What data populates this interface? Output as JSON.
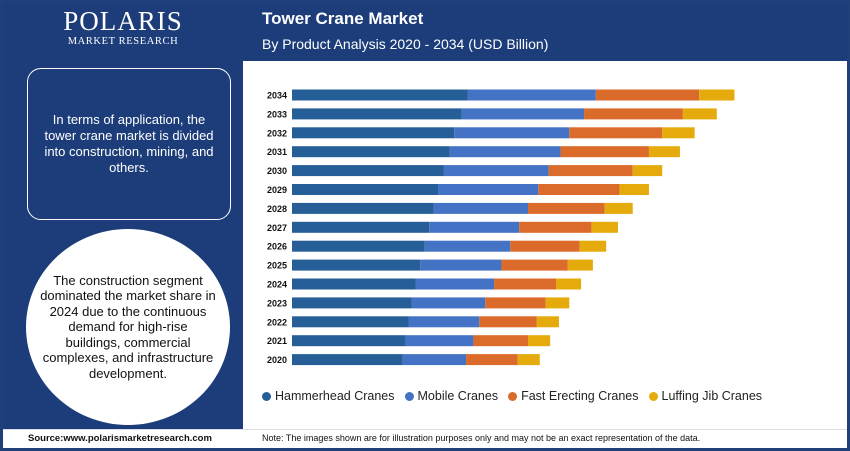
{
  "brand": {
    "name": "POLARIS",
    "tagline": "MARKET RESEARCH"
  },
  "header": {
    "title": "Tower Crane Market",
    "subtitle": "By Product Analysis 2020 - 2034 (USD Billion)"
  },
  "sidebar": {
    "info_text": "In terms of application, the tower crane market is divided into construction, mining, and others.",
    "highlight_text": "The construction segment dominated the market share in 2024 due to the continuous demand for high-rise buildings, commercial complexes, and infrastructure development."
  },
  "footer": {
    "source": "Source:www.polarismarketresearch.com",
    "note": "Note: The images shown are for illustration purposes only and may not be an exact representation of the data."
  },
  "colors": {
    "brand_navy": "#1c3d79",
    "hammerhead": "#265f97",
    "mobile": "#4472c4",
    "fast_erecting": "#db6b2b",
    "luffing_jib": "#e5ab0c"
  },
  "chart_data": {
    "type": "bar",
    "orientation": "horizontal",
    "stacked": true,
    "title": "Tower Crane Market",
    "subtitle": "By Product Analysis 2020 - 2034 (USD Billion)",
    "categories": [
      "2034",
      "2033",
      "2032",
      "2031",
      "2030",
      "2029",
      "2028",
      "2027",
      "2026",
      "2025",
      "2024",
      "2023",
      "2022",
      "2021",
      "2020"
    ],
    "series": [
      {
        "name": "Hammerhead Cranes",
        "color": "#265f97",
        "values": [
          5.95,
          5.75,
          5.5,
          5.35,
          5.15,
          4.95,
          4.8,
          4.65,
          4.5,
          4.35,
          4.2,
          4.05,
          3.95,
          3.85,
          3.75
        ]
      },
      {
        "name": "Mobile Cranes",
        "color": "#4472c4",
        "values": [
          4.35,
          4.15,
          3.9,
          3.75,
          3.55,
          3.4,
          3.2,
          3.05,
          2.9,
          2.75,
          2.65,
          2.5,
          2.4,
          2.3,
          2.15
        ]
      },
      {
        "name": "Fast Erecting Cranes",
        "color": "#db6b2b",
        "values": [
          3.5,
          3.35,
          3.15,
          3.0,
          2.85,
          2.75,
          2.6,
          2.45,
          2.35,
          2.25,
          2.1,
          2.05,
          1.95,
          1.85,
          1.75
        ]
      },
      {
        "name": "Luffing Jib Cranes",
        "color": "#e5ab0c",
        "values": [
          1.2,
          1.15,
          1.1,
          1.05,
          1.0,
          1.0,
          0.95,
          0.9,
          0.9,
          0.85,
          0.85,
          0.8,
          0.75,
          0.75,
          0.75
        ]
      }
    ],
    "axis_visible": false,
    "grid": false,
    "legend_position": "bottom"
  }
}
